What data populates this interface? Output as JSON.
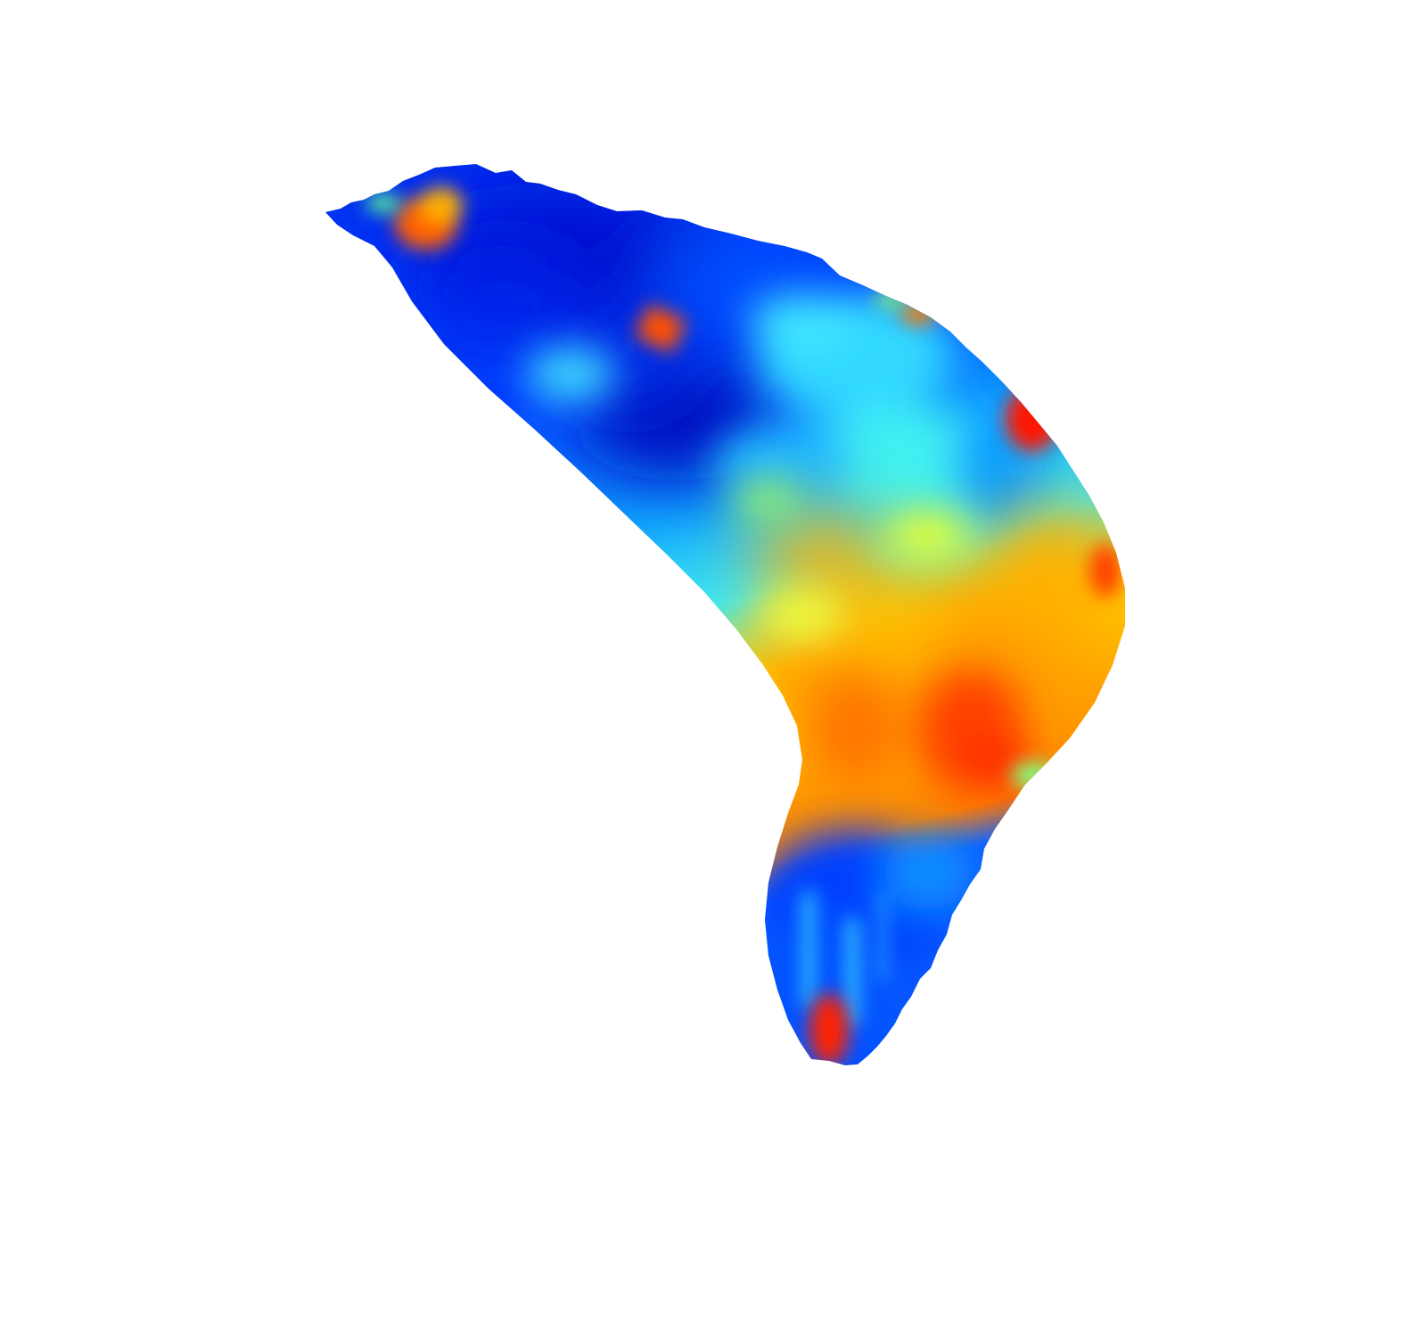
{
  "background": "#ffffff",
  "colormap": {
    "name": "jet",
    "stops": [
      "#00008f",
      "#0020ff",
      "#00a0ff",
      "#20ffdf",
      "#9fff60",
      "#ffe000",
      "#ff8000",
      "#ff1000"
    ]
  },
  "regions": [
    {
      "name": "upper-tip-hot-spot",
      "color": "#ff7a00"
    },
    {
      "name": "upper-band-cold",
      "color": "#0010d8"
    },
    {
      "name": "center-small-hot-spot",
      "color": "#ff6a00"
    },
    {
      "name": "right-edge-hot-spot",
      "color": "#ff2000"
    },
    {
      "name": "middle-band-cyan",
      "color": "#30e8ff"
    },
    {
      "name": "lower-band-warm",
      "color": "#ffaa00"
    },
    {
      "name": "lower-band-hot-core",
      "color": "#ff3000"
    },
    {
      "name": "tail-band-cold",
      "color": "#0060ff"
    },
    {
      "name": "tail-bottom-hot-spot",
      "color": "#ff2a00"
    }
  ]
}
